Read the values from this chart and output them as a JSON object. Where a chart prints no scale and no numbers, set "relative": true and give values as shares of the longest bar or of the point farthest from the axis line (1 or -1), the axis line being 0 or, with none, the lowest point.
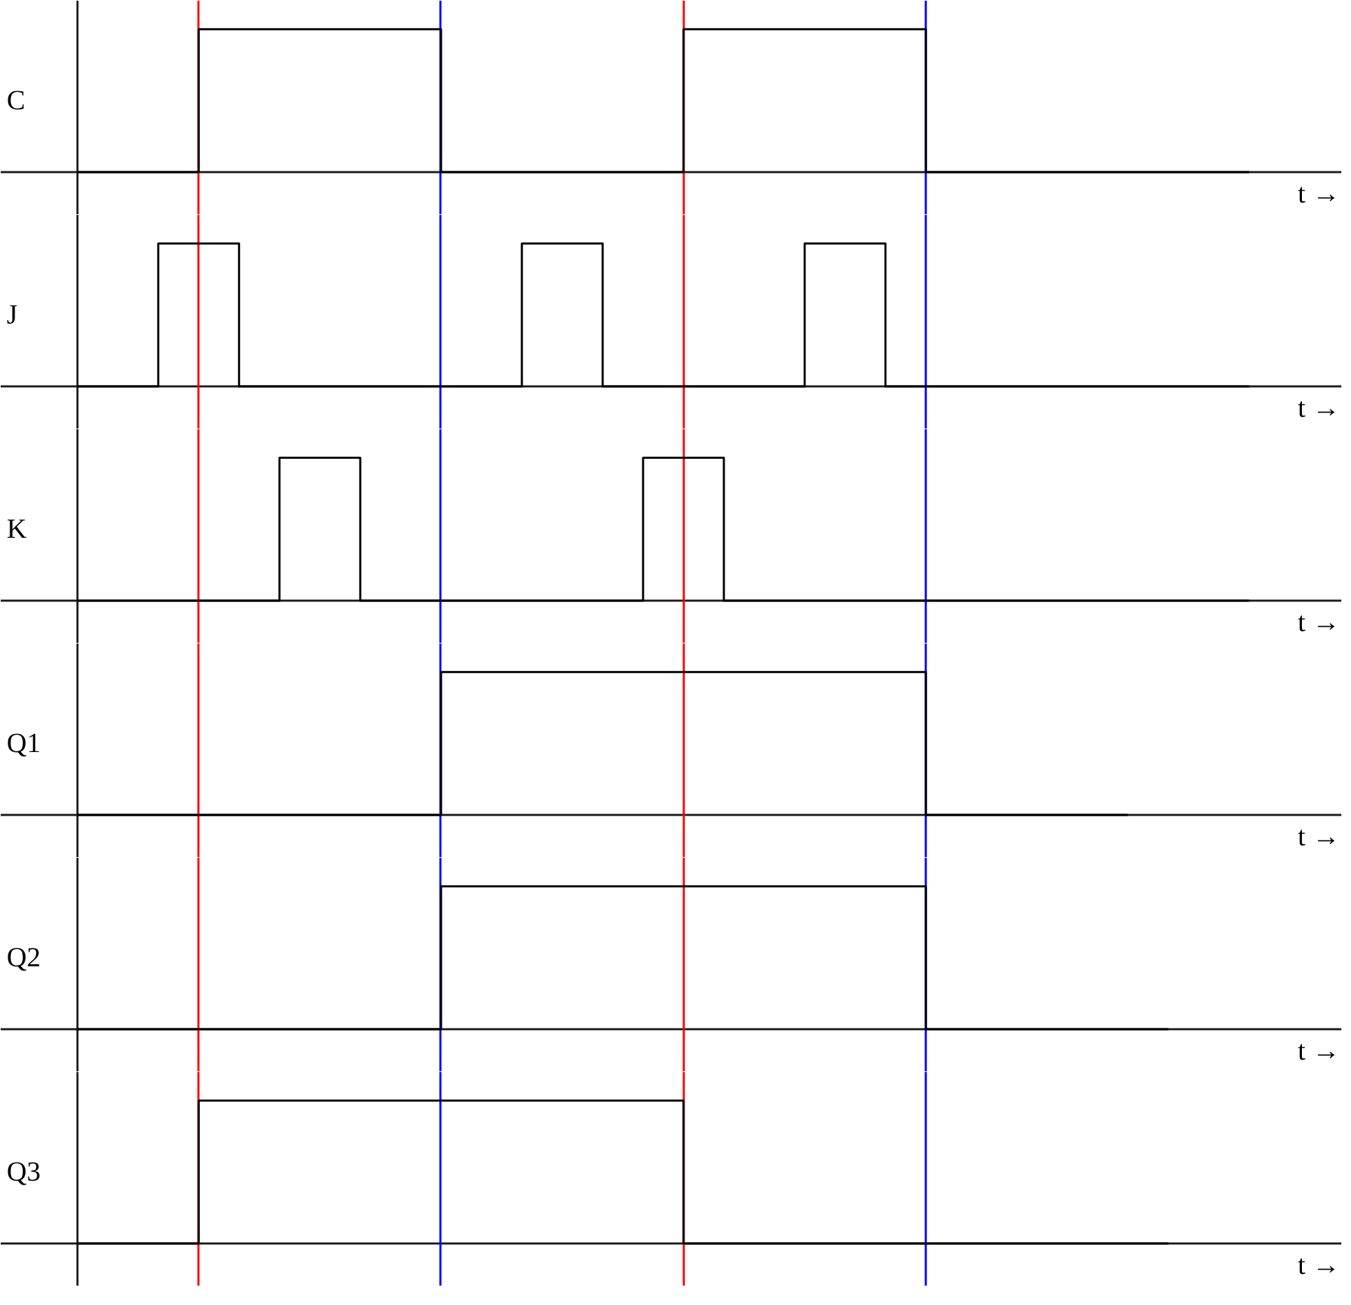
{
  "chart_data": [
    {
      "type": "step",
      "grid": "x",
      "ylabel": "C",
      "xlabel": "t →",
      "relative": true,
      "categories": [
        null,
        null,
        null,
        null,
        null,
        null,
        null,
        null,
        null,
        null,
        null,
        null,
        null,
        null,
        null,
        null,
        null,
        null,
        null,
        null,
        null,
        null,
        null,
        null,
        null,
        null,
        null,
        null,
        null,
        null
      ],
      "series": [
        {
          "color": "#000000",
          "values": [
            0,
            0,
            0,
            1,
            1,
            1,
            1,
            1,
            1,
            0,
            0,
            0,
            0,
            0,
            0,
            1,
            1,
            1,
            1,
            1,
            1,
            0,
            0,
            0,
            0,
            0,
            0,
            0,
            0,
            0
          ]
        }
      ]
    },
    {
      "type": "step",
      "grid": "x",
      "ylabel": "J",
      "xlabel": "t →",
      "relative": true,
      "categories": [
        null,
        null,
        null,
        null,
        null,
        null,
        null,
        null,
        null,
        null,
        null,
        null,
        null,
        null,
        null,
        null,
        null,
        null,
        null,
        null,
        null,
        null,
        null,
        null,
        null,
        null,
        null,
        null,
        null,
        null
      ],
      "series": [
        {
          "color": "#000000",
          "values": [
            0,
            0,
            1,
            1,
            0,
            0,
            0,
            0,
            0,
            0,
            0,
            1,
            1,
            0,
            0,
            0,
            0,
            0,
            1,
            1,
            0,
            0,
            0,
            0,
            0,
            0,
            0,
            0,
            0,
            0
          ]
        }
      ]
    },
    {
      "type": "step",
      "grid": "x",
      "ylabel": "K",
      "xlabel": "t →",
      "relative": true,
      "categories": [
        null,
        null,
        null,
        null,
        null,
        null,
        null,
        null,
        null,
        null,
        null,
        null,
        null,
        null,
        null,
        null,
        null,
        null,
        null,
        null,
        null,
        null,
        null,
        null,
        null,
        null,
        null,
        null,
        null,
        null
      ],
      "series": [
        {
          "color": "#000000",
          "values": [
            0,
            0,
            0,
            0,
            0,
            1,
            1,
            0,
            0,
            0,
            0,
            0,
            0,
            0,
            1,
            1,
            0,
            0,
            0,
            0,
            0,
            0,
            0,
            0,
            0,
            0,
            0,
            0,
            0,
            0
          ]
        }
      ]
    },
    {
      "type": "step",
      "grid": "x",
      "ylabel": "Q1",
      "xlabel": "t →",
      "relative": true,
      "categories": [
        null,
        null,
        null,
        null,
        null,
        null,
        null,
        null,
        null,
        null,
        null,
        null,
        null,
        null,
        null,
        null,
        null,
        null,
        null,
        null,
        null,
        null,
        null,
        null,
        null,
        null,
        null
      ],
      "series": [
        {
          "color": "#000000",
          "values": [
            0,
            0,
            0,
            0,
            0,
            0,
            0,
            0,
            0,
            1,
            1,
            1,
            1,
            1,
            1,
            1,
            1,
            1,
            1,
            1,
            1,
            0,
            0,
            0,
            0,
            0,
            0
          ]
        }
      ]
    },
    {
      "type": "step",
      "grid": "x",
      "ylabel": "Q2",
      "xlabel": "t →",
      "relative": true,
      "categories": [
        null,
        null,
        null,
        null,
        null,
        null,
        null,
        null,
        null,
        null,
        null,
        null,
        null,
        null,
        null,
        null,
        null,
        null,
        null,
        null,
        null,
        null,
        null,
        null,
        null,
        null,
        null,
        null
      ],
      "series": [
        {
          "color": "#000000",
          "values": [
            0,
            0,
            0,
            0,
            0,
            0,
            0,
            0,
            0,
            1,
            1,
            1,
            1,
            1,
            1,
            1,
            1,
            1,
            1,
            1,
            1,
            0,
            0,
            0,
            0,
            0,
            0,
            0
          ]
        }
      ]
    },
    {
      "type": "step",
      "grid": "x",
      "ylabel": "Q3",
      "xlabel": "t →",
      "relative": true,
      "categories": [
        null,
        null,
        null,
        null,
        null,
        null,
        null,
        null,
        null,
        null,
        null,
        null,
        null,
        null,
        null,
        null,
        null,
        null,
        null,
        null,
        null,
        null,
        null,
        null,
        null,
        null,
        null,
        null
      ],
      "series": [
        {
          "color": "#000000",
          "values": [
            0,
            0,
            0,
            1,
            1,
            1,
            1,
            1,
            1,
            1,
            1,
            1,
            1,
            1,
            1,
            0,
            0,
            0,
            0,
            0,
            0,
            0,
            0,
            0,
            0,
            0,
            0,
            0
          ]
        }
      ]
    }
  ]
}
